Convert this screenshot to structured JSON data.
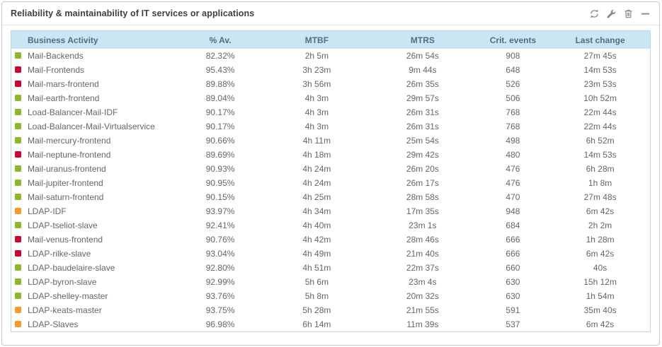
{
  "panel": {
    "title": "Reliability & maintainability of IT services or applications",
    "toolbar": {
      "refresh": "refresh",
      "configure": "configure",
      "delete": "delete",
      "collapse": "collapse"
    }
  },
  "table": {
    "columns": [
      "Business Activity",
      "% Av.",
      "MTBF",
      "MTRS",
      "Crit. events",
      "Last change"
    ],
    "rows": [
      {
        "status": "ok",
        "name": "Mail-Backends",
        "availability": "82.32%",
        "mtbf": "2h 5m",
        "mtrs": "26m 54s",
        "crit_events": "908",
        "last_change": "27m 45s"
      },
      {
        "status": "critical",
        "name": "Mail-Frontends",
        "availability": "95.43%",
        "mtbf": "3h 23m",
        "mtrs": "9m 44s",
        "crit_events": "648",
        "last_change": "14m 53s"
      },
      {
        "status": "critical",
        "name": "Mail-mars-frontend",
        "availability": "89.88%",
        "mtbf": "3h 56m",
        "mtrs": "26m 35s",
        "crit_events": "526",
        "last_change": "23m 53s"
      },
      {
        "status": "ok",
        "name": "Mail-earth-frontend",
        "availability": "89.04%",
        "mtbf": "4h 3m",
        "mtrs": "29m 57s",
        "crit_events": "506",
        "last_change": "10h 52m"
      },
      {
        "status": "ok",
        "name": "Load-Balancer-Mail-IDF",
        "availability": "90.17%",
        "mtbf": "4h 3m",
        "mtrs": "26m 31s",
        "crit_events": "768",
        "last_change": "22m 44s"
      },
      {
        "status": "ok",
        "name": "Load-Balancer-Mail-Virtualservice",
        "availability": "90.17%",
        "mtbf": "4h 3m",
        "mtrs": "26m 31s",
        "crit_events": "768",
        "last_change": "22m 44s"
      },
      {
        "status": "ok",
        "name": "Mail-mercury-frontend",
        "availability": "90.66%",
        "mtbf": "4h 11m",
        "mtrs": "25m 54s",
        "crit_events": "498",
        "last_change": "6h 52m"
      },
      {
        "status": "critical",
        "name": "Mail-neptune-frontend",
        "availability": "89.69%",
        "mtbf": "4h 18m",
        "mtrs": "29m 42s",
        "crit_events": "480",
        "last_change": "14m 53s"
      },
      {
        "status": "ok",
        "name": "Mail-uranus-frontend",
        "availability": "90.93%",
        "mtbf": "4h 24m",
        "mtrs": "26m 20s",
        "crit_events": "476",
        "last_change": "6h 28m"
      },
      {
        "status": "ok",
        "name": "Mail-jupiter-frontend",
        "availability": "90.95%",
        "mtbf": "4h 24m",
        "mtrs": "26m 17s",
        "crit_events": "476",
        "last_change": "1h 8m"
      },
      {
        "status": "ok",
        "name": "Mail-saturn-frontend",
        "availability": "90.15%",
        "mtbf": "4h 25m",
        "mtrs": "28m 58s",
        "crit_events": "470",
        "last_change": "27m 48s"
      },
      {
        "status": "warning",
        "name": "LDAP-IDF",
        "availability": "93.97%",
        "mtbf": "4h 34m",
        "mtrs": "17m 35s",
        "crit_events": "948",
        "last_change": "6m 42s"
      },
      {
        "status": "ok",
        "name": "LDAP-tseliot-slave",
        "availability": "92.41%",
        "mtbf": "4h 40m",
        "mtrs": "23m 1s",
        "crit_events": "684",
        "last_change": "2h 2m"
      },
      {
        "status": "critical",
        "name": "Mail-venus-frontend",
        "availability": "90.76%",
        "mtbf": "4h 42m",
        "mtrs": "28m 46s",
        "crit_events": "666",
        "last_change": "1h 28m"
      },
      {
        "status": "critical",
        "name": "LDAP-rilke-slave",
        "availability": "93.04%",
        "mtbf": "4h 49m",
        "mtrs": "21m 40s",
        "crit_events": "666",
        "last_change": "6m 42s"
      },
      {
        "status": "ok",
        "name": "LDAP-baudelaire-slave",
        "availability": "92.80%",
        "mtbf": "4h 51m",
        "mtrs": "22m 37s",
        "crit_events": "660",
        "last_change": "40s"
      },
      {
        "status": "ok",
        "name": "LDAP-byron-slave",
        "availability": "92.99%",
        "mtbf": "5h 6m",
        "mtrs": "23m 4s",
        "crit_events": "630",
        "last_change": "15h 12m"
      },
      {
        "status": "ok",
        "name": "LDAP-shelley-master",
        "availability": "93.76%",
        "mtbf": "5h 8m",
        "mtrs": "20m 32s",
        "crit_events": "630",
        "last_change": "1h 54m"
      },
      {
        "status": "warning",
        "name": "LDAP-keats-master",
        "availability": "93.75%",
        "mtbf": "5h 28m",
        "mtrs": "21m 55s",
        "crit_events": "591",
        "last_change": "35m 40s"
      },
      {
        "status": "warning",
        "name": "LDAP-Slaves",
        "availability": "96.98%",
        "mtbf": "6h 14m",
        "mtrs": "11m 39s",
        "crit_events": "537",
        "last_change": "6m 42s"
      }
    ]
  },
  "colors": {
    "status_ok": "#8cb82c",
    "status_critical": "#ca0732",
    "status_warning": "#f59c23",
    "header_bg": "#cbe6f3",
    "header_text": "#4d6f80",
    "table_border": "#b7dbeb",
    "row_text": "#666666",
    "icon_gray": "#8a8a7e"
  }
}
